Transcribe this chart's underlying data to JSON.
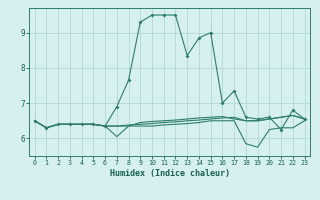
{
  "xlabel": "Humidex (Indice chaleur)",
  "x_values": [
    0,
    1,
    2,
    3,
    4,
    5,
    6,
    7,
    8,
    9,
    10,
    11,
    12,
    13,
    14,
    15,
    16,
    17,
    18,
    19,
    20,
    21,
    22,
    23
  ],
  "series": [
    [
      6.5,
      6.3,
      6.4,
      6.4,
      6.4,
      6.4,
      6.35,
      6.9,
      7.65,
      9.3,
      9.5,
      9.5,
      9.5,
      8.35,
      8.85,
      9.0,
      7.0,
      7.35,
      6.6,
      6.55,
      6.6,
      6.25,
      6.8,
      6.55
    ],
    [
      6.5,
      6.3,
      6.4,
      6.4,
      6.4,
      6.4,
      6.35,
      6.05,
      6.35,
      6.35,
      6.35,
      6.38,
      6.4,
      6.42,
      6.45,
      6.5,
      6.5,
      6.5,
      5.85,
      5.75,
      6.25,
      6.3,
      6.3,
      6.5
    ],
    [
      6.5,
      6.3,
      6.4,
      6.4,
      6.4,
      6.4,
      6.35,
      6.35,
      6.35,
      6.45,
      6.48,
      6.5,
      6.52,
      6.55,
      6.58,
      6.6,
      6.62,
      6.55,
      6.5,
      6.5,
      6.55,
      6.6,
      6.65,
      6.55
    ],
    [
      6.5,
      6.3,
      6.4,
      6.4,
      6.4,
      6.4,
      6.35,
      6.35,
      6.38,
      6.4,
      6.42,
      6.45,
      6.47,
      6.5,
      6.52,
      6.55,
      6.58,
      6.6,
      6.5,
      6.5,
      6.55,
      6.6,
      6.65,
      6.55
    ]
  ],
  "line_color": "#2e7d6e",
  "bg_color": "#d6f0ef",
  "grid_color": "#b0d8d4",
  "xlim": [
    -0.5,
    23.5
  ],
  "ylim": [
    5.5,
    9.7
  ],
  "yticks": [
    6,
    7,
    8,
    9
  ],
  "xticks": [
    0,
    1,
    2,
    3,
    4,
    5,
    6,
    7,
    8,
    9,
    10,
    11,
    12,
    13,
    14,
    15,
    16,
    17,
    18,
    19,
    20,
    21,
    22,
    23
  ],
  "xlabel_fontsize": 6.0,
  "tick_fontsize_x": 4.8,
  "tick_fontsize_y": 5.5
}
